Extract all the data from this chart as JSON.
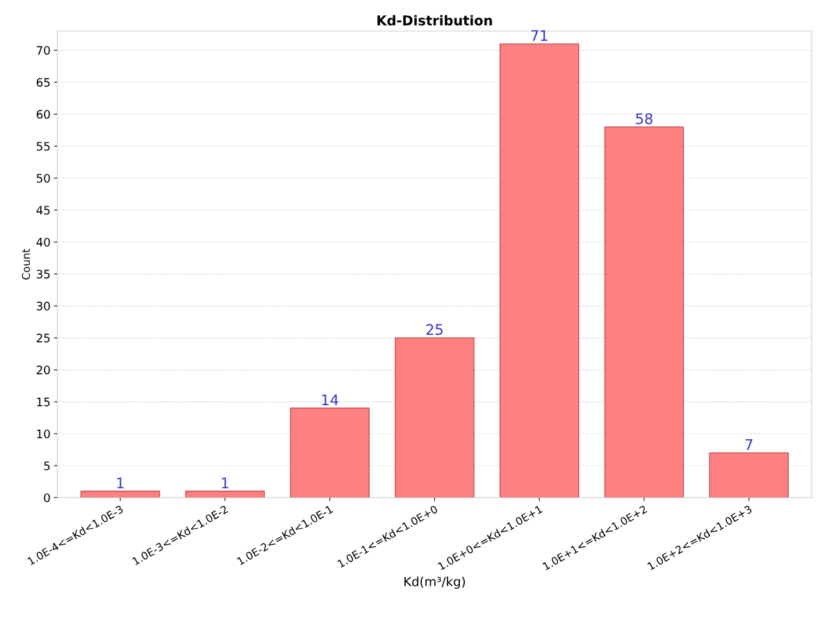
{
  "chart_data": {
    "type": "bar",
    "title": "Kd-Distribution",
    "xlabel": "Kd(m³/kg)",
    "ylabel": "Count",
    "categories": [
      "1.0E-4<=Kd<1.0E-3",
      "1.0E-3<=Kd<1.0E-2",
      "1.0E-2<=Kd<1.0E-1",
      "1.0E-1<=Kd<1.0E+0",
      "1.0E+0<=Kd<1.0E+1",
      "1.0E+1<=Kd<1.0E+2",
      "1.0E+2<=Kd<1.0E+3"
    ],
    "values": [
      1,
      1,
      14,
      25,
      71,
      58,
      7
    ],
    "color": "#ff8080",
    "ylim": [
      0,
      73
    ],
    "yticks": [
      0,
      5,
      10,
      15,
      20,
      25,
      30,
      35,
      40,
      45,
      50,
      55,
      60,
      65,
      70
    ],
    "grid": "y",
    "data_labels": true
  }
}
